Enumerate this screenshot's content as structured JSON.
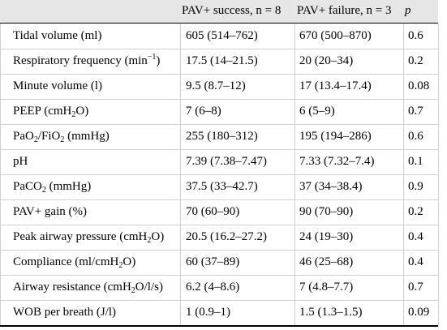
{
  "table": {
    "headers": {
      "col0": "",
      "col1": "PAV+ success, n = 8",
      "col2": "PAV+ failure, n = 3",
      "col3": "p"
    },
    "rows": [
      {
        "label": "Tidal volume (ml)",
        "success": "605 (514–762)",
        "failure": "670 (500–870)",
        "p": "0.6"
      },
      {
        "label": "Respiratory frequency (min−1)",
        "success": "17.5 (14–21.5)",
        "failure": "20 (20–34)",
        "p": "0.2"
      },
      {
        "label": "Minute volume (l)",
        "success": "9.5 (8.7–12)",
        "failure": "17 (13.4–17.4)",
        "p": "0.08"
      },
      {
        "label": "PEEP (cmH2O)",
        "success": "7 (6–8)",
        "failure": "6 (5–9)",
        "p": "0.7"
      },
      {
        "label": "PaO2/FiO2 (mmHg)",
        "success": "255 (180–312)",
        "failure": "195 (194–286)",
        "p": "0.6"
      },
      {
        "label": "pH",
        "success": "7.39 (7.38–7.47)",
        "failure": "7.33 (7.32–7.4)",
        "p": "0.1"
      },
      {
        "label": "PaCO2 (mmHg)",
        "success": "37.5 (33–42.7)",
        "failure": "37 (34–38.4)",
        "p": "0.9"
      },
      {
        "label": "PAV+ gain (%)",
        "success": "70 (60–90)",
        "failure": "90 (70–90)",
        "p": "0.2"
      },
      {
        "label": "Peak airway pressure (cmH2O)",
        "success": "20.5 (16.2–27.2)",
        "failure": "24 (19–30)",
        "p": "0.4"
      },
      {
        "label": "Compliance (ml/cmH2O)",
        "success": "60 (37–89)",
        "failure": "46 (25–68)",
        "p": "0.4"
      },
      {
        "label": "Airway resistance (cmH2O/l/s)",
        "success": "6.2 (4–8.6)",
        "failure": "7 (4.8–7.7)",
        "p": "0.7"
      },
      {
        "label": "WOB per breath (J/l)",
        "success": "1 (0.9–1)",
        "failure": "1.5 (1.3–1.5)",
        "p": "0.09"
      }
    ]
  }
}
